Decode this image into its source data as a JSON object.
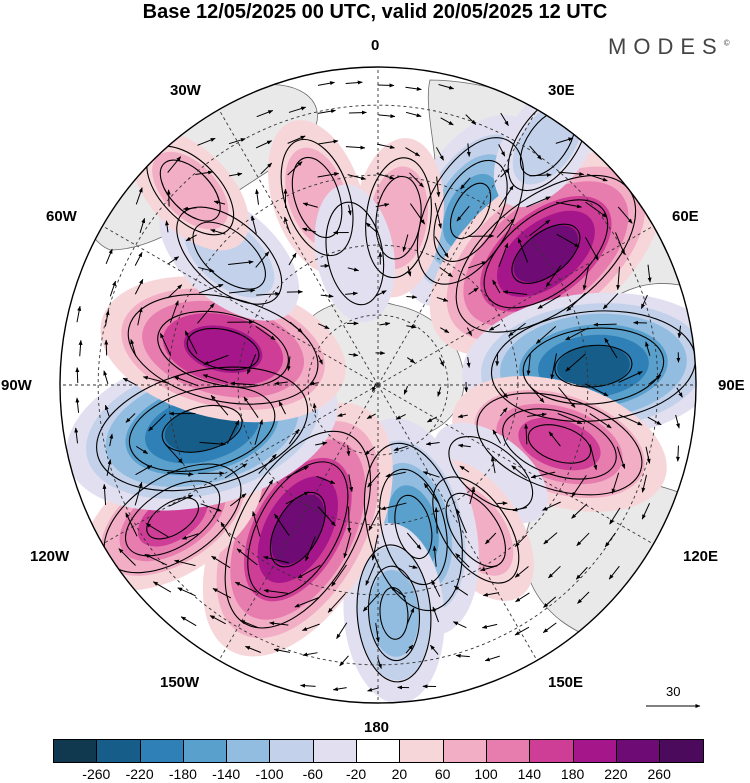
{
  "title": "Base 12/05/2025 00 UTC, valid 20/05/2025 12 UTC",
  "brand": "MODES",
  "brand_mark": "©",
  "longitude_labels": {
    "top": "0",
    "bottom": "180",
    "left": "90W",
    "right": "90E",
    "upper_left_1": "30W",
    "upper_left_2": "60W",
    "upper_right_1": "30E",
    "upper_right_2": "60E",
    "lower_left_1": "120W",
    "lower_left_2": "150W",
    "lower_right_1": "120E",
    "lower_right_2": "150E"
  },
  "vector_reference": "30",
  "colorbar": {
    "ticks": [
      "-260",
      "-220",
      "-180",
      "-140",
      "-100",
      "-60",
      "-20",
      "20",
      "60",
      "100",
      "140",
      "180",
      "220",
      "260"
    ],
    "colors": [
      "#10384f",
      "#175d8a",
      "#2f80b6",
      "#5aa0cd",
      "#93bde0",
      "#c3d1ea",
      "#e2e0f0",
      "#ffffff",
      "#f7d6da",
      "#f2aec4",
      "#e77cae",
      "#cf3e96",
      "#a5168a",
      "#6e0b74",
      "#4c0a5d"
    ]
  },
  "anomaly_centers": [
    {
      "lon": 28,
      "lat_ring": 0.62,
      "value": -150
    },
    {
      "lon": 52,
      "lat_ring": 0.67,
      "value": 240
    },
    {
      "lon": 85,
      "lat_ring": 0.68,
      "value": -230
    },
    {
      "lon": 108,
      "lat_ring": 0.6,
      "value": 170
    },
    {
      "lon": 128,
      "lat_ring": 0.45,
      "value": -40
    },
    {
      "lon": 146,
      "lat_ring": 0.55,
      "value": 80
    },
    {
      "lon": 166,
      "lat_ring": 0.46,
      "value": -170
    },
    {
      "lon": 176,
      "lat_ring": 0.72,
      "value": -110
    },
    {
      "lon": -151,
      "lat_ring": 0.52,
      "value": 250
    },
    {
      "lon": -123,
      "lat_ring": 0.77,
      "value": 140
    },
    {
      "lon": -104,
      "lat_ring": 0.57,
      "value": -250
    },
    {
      "lon": -77,
      "lat_ring": 0.5,
      "value": 210
    },
    {
      "lon": -49,
      "lat_ring": 0.62,
      "value": -90
    },
    {
      "lon": -18,
      "lat_ring": 0.62,
      "value": 80
    },
    {
      "lon": -44,
      "lat_ring": 0.85,
      "value": 60
    },
    {
      "lon": 7,
      "lat_ring": 0.53,
      "value": 80
    },
    {
      "lon": -10,
      "lat_ring": 0.42,
      "value": -50
    },
    {
      "lon": 35,
      "lat_ring": 0.93,
      "value": -60
    }
  ]
}
